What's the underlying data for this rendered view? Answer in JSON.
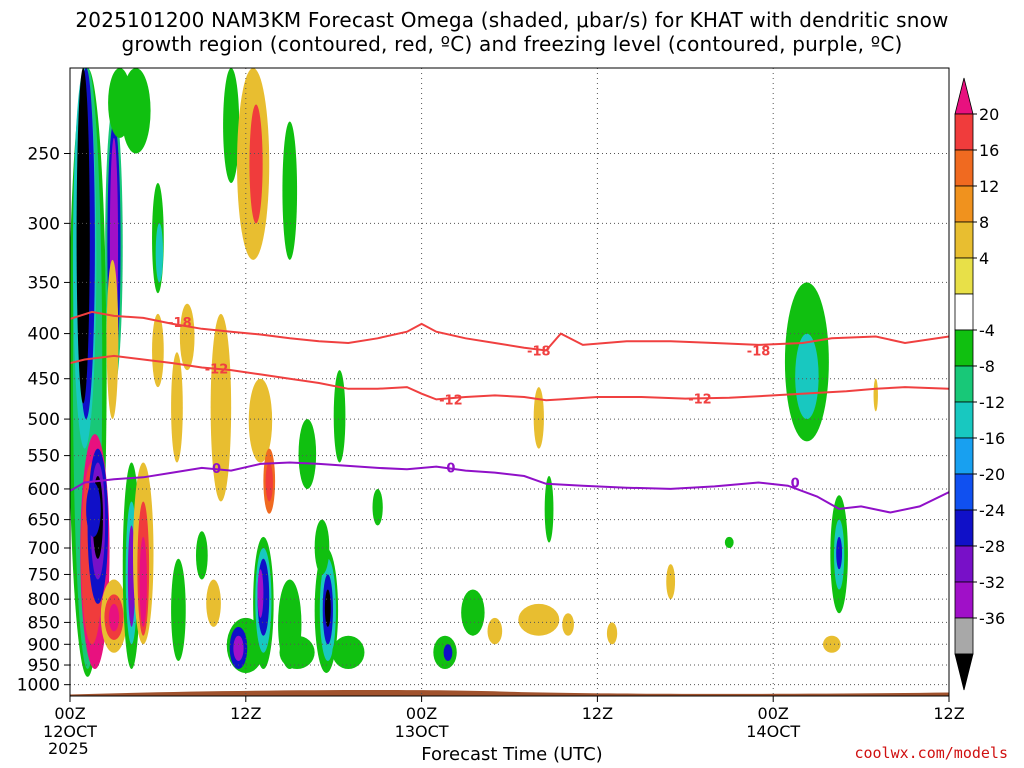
{
  "title_line1": "2025101200 NAM3KM Forecast Omega (shaded, μbar/s) for KHAT with dendritic snow",
  "title_line2": "growth region (contoured, red, ºC) and freezing level (contoured, purple, ºC)",
  "credit": "coolwx.com/models",
  "chart_data": {
    "type": "heatmap",
    "xlabel": "Forecast Time (UTC)",
    "ylabel": "",
    "x_ticks": [
      {
        "hour": 0,
        "label": "00Z",
        "sub": "12OCT"
      },
      {
        "hour": 12,
        "label": "12Z",
        "sub": ""
      },
      {
        "hour": 24,
        "label": "00Z",
        "sub": "13OCT"
      },
      {
        "hour": 36,
        "label": "12Z",
        "sub": ""
      },
      {
        "hour": 48,
        "label": "00Z",
        "sub": "14OCT"
      },
      {
        "hour": 60,
        "label": "12Z",
        "sub": ""
      }
    ],
    "year_label": "2025",
    "xlim": [
      0,
      60
    ],
    "y_ticks": [
      250,
      300,
      350,
      400,
      450,
      500,
      550,
      600,
      650,
      700,
      750,
      800,
      850,
      900,
      950,
      1000
    ],
    "ylim_hpa": [
      200,
      1030
    ],
    "y_scale": "log",
    "grid": true,
    "colorbar": {
      "labels": [
        "20",
        "16",
        "12",
        "8",
        "4",
        "-4",
        "-8",
        "-12",
        "-16",
        "-20",
        "-24",
        "-28",
        "-32",
        "-36"
      ],
      "colors": [
        "#e8117f",
        "#f03c3c",
        "#f06a20",
        "#f0921e",
        "#e8be30",
        "#e8e048",
        "#ffffff",
        "#10c010",
        "#18c878",
        "#18c8c0",
        "#18a0f0",
        "#1050f0",
        "#1010c8",
        "#7810c8",
        "#a010c8",
        "#a8a8a8",
        "#000000"
      ]
    },
    "contour_lines": [
      {
        "color": "#f04040",
        "label": "-18",
        "points": [
          [
            0,
            385
          ],
          [
            1.5,
            378
          ],
          [
            3,
            382
          ],
          [
            5,
            384
          ],
          [
            7,
            390
          ],
          [
            9,
            395
          ],
          [
            11,
            398
          ],
          [
            13,
            401
          ],
          [
            15,
            405
          ],
          [
            17,
            408
          ],
          [
            19,
            410
          ],
          [
            21,
            405
          ],
          [
            23,
            398
          ],
          [
            24,
            390
          ],
          [
            25,
            398
          ],
          [
            27,
            405
          ],
          [
            29,
            410
          ],
          [
            31,
            415
          ],
          [
            32.5,
            418
          ],
          [
            33.5,
            400
          ],
          [
            35,
            412
          ],
          [
            38,
            408
          ],
          [
            41,
            408
          ],
          [
            44,
            410
          ],
          [
            47,
            412
          ],
          [
            50,
            410
          ],
          [
            52,
            405
          ],
          [
            55,
            403
          ],
          [
            57,
            410
          ],
          [
            60,
            403
          ]
        ],
        "label_at": [
          [
            7.5,
            388
          ],
          [
            32,
            418
          ],
          [
            47,
            418
          ]
        ]
      },
      {
        "color": "#f04040",
        "label": "-12",
        "points": [
          [
            0,
            432
          ],
          [
            1,
            428
          ],
          [
            3,
            424
          ],
          [
            5,
            428
          ],
          [
            7,
            432
          ],
          [
            9,
            437
          ],
          [
            11,
            440
          ],
          [
            13,
            445
          ],
          [
            15,
            450
          ],
          [
            17,
            455
          ],
          [
            19,
            462
          ],
          [
            21,
            462
          ],
          [
            23,
            460
          ],
          [
            24,
            468
          ],
          [
            25,
            475
          ],
          [
            27,
            472
          ],
          [
            29,
            470
          ],
          [
            31,
            472
          ],
          [
            32.5,
            476
          ],
          [
            33.5,
            475
          ],
          [
            36,
            472
          ],
          [
            39,
            472
          ],
          [
            42,
            474
          ],
          [
            45,
            473
          ],
          [
            48,
            470
          ],
          [
            51,
            467
          ],
          [
            53,
            465
          ],
          [
            55,
            462
          ],
          [
            57,
            460
          ],
          [
            60,
            462
          ]
        ],
        "label_at": [
          [
            10,
            438
          ],
          [
            26,
            475
          ],
          [
            43,
            474
          ]
        ]
      },
      {
        "color": "#9010c8",
        "label": "0",
        "points": [
          [
            0,
            603
          ],
          [
            1,
            590
          ],
          [
            3,
            585
          ],
          [
            5,
            582
          ],
          [
            7,
            575
          ],
          [
            9,
            568
          ],
          [
            11,
            572
          ],
          [
            13,
            562
          ],
          [
            15,
            560
          ],
          [
            17,
            562
          ],
          [
            19,
            565
          ],
          [
            21,
            568
          ],
          [
            23,
            570
          ],
          [
            25,
            566
          ],
          [
            27,
            572
          ],
          [
            29,
            575
          ],
          [
            31,
            580
          ],
          [
            32.5,
            592
          ],
          [
            35,
            595
          ],
          [
            38,
            598
          ],
          [
            41,
            600
          ],
          [
            44,
            596
          ],
          [
            47,
            590
          ],
          [
            49,
            595
          ],
          [
            51,
            612
          ],
          [
            52.5,
            632
          ],
          [
            54,
            628
          ],
          [
            56,
            638
          ],
          [
            58,
            628
          ],
          [
            60,
            605
          ]
        ],
        "label_at": [
          [
            10,
            568
          ],
          [
            26,
            567
          ],
          [
            49.5,
            590
          ]
        ]
      }
    ]
  }
}
